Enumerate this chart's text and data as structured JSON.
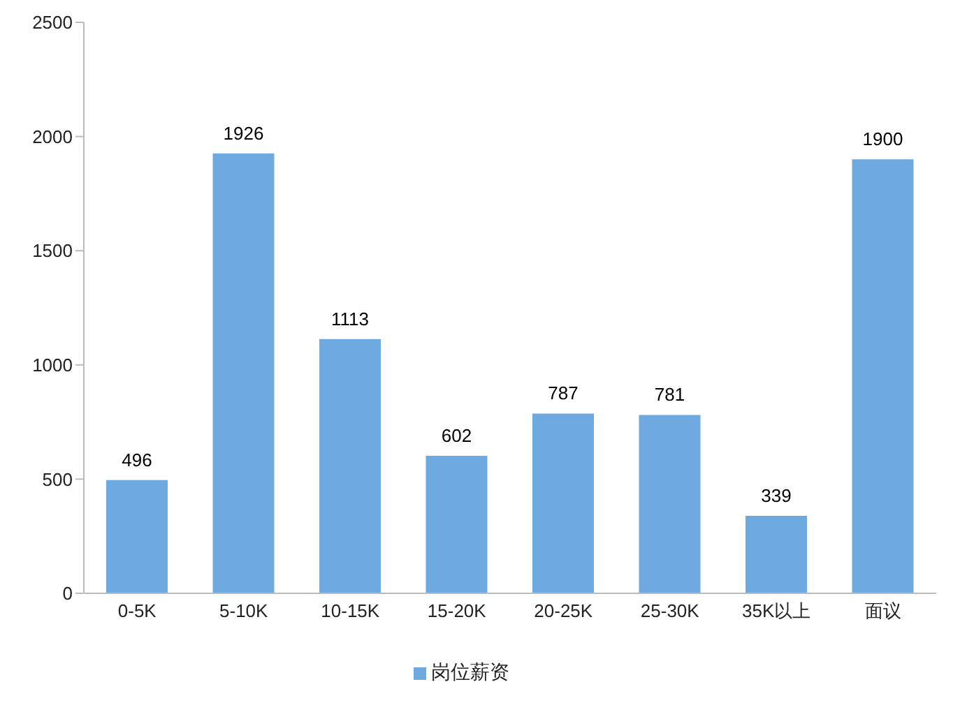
{
  "chart_data": {
    "type": "bar",
    "categories": [
      "0-5K",
      "5-10K",
      "10-15K",
      "15-20K",
      "20-25K",
      "25-30K",
      "35K以上",
      "面议"
    ],
    "series": [
      {
        "name": "岗位薪资",
        "color": "#6eaae0",
        "values": [
          496,
          1926,
          1113,
          602,
          787,
          781,
          339,
          1900
        ]
      }
    ],
    "ylim": [
      0,
      2500
    ],
    "yticks": [
      0,
      500,
      1000,
      1500,
      2000,
      2500
    ],
    "grid": false,
    "legend": "bottom",
    "data_labels": true
  }
}
